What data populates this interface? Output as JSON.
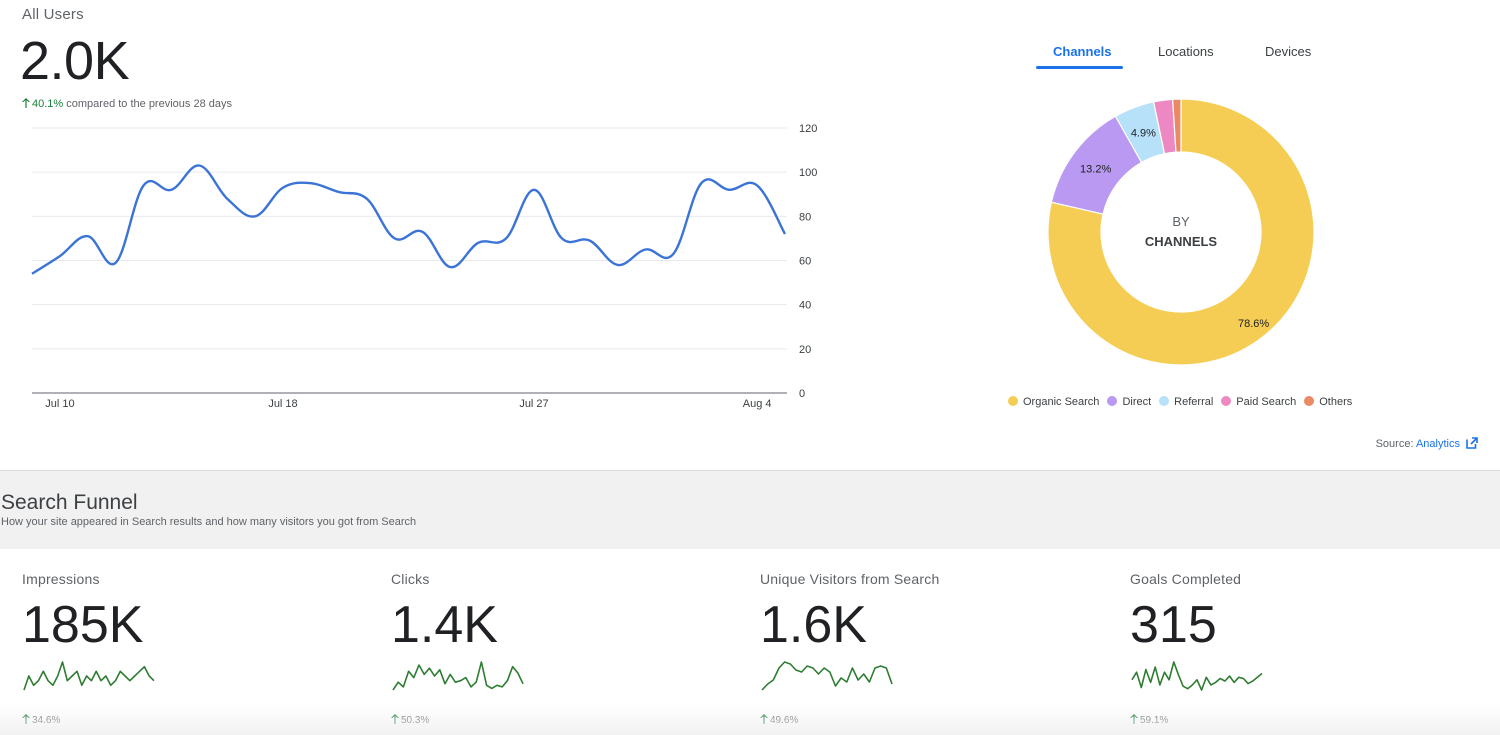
{
  "all_users": {
    "title": "All Users",
    "value": "2.0K",
    "delta": "40.1%",
    "delta_text": "compared to the previous 28 days"
  },
  "tabs": [
    {
      "label": "Channels",
      "active": true
    },
    {
      "label": "Locations",
      "active": false
    },
    {
      "label": "Devices",
      "active": false
    }
  ],
  "chart_data": [
    {
      "type": "line",
      "title": "",
      "xlabel": "",
      "ylabel": "",
      "ylim": [
        0,
        120
      ],
      "yticks": [
        0,
        20,
        40,
        60,
        80,
        100,
        120
      ],
      "xtick_labels": [
        "Jul 10",
        "Jul 18",
        "Jul 27",
        "Aug 4"
      ],
      "x": [
        "Jul 9",
        "Jul 10",
        "Jul 11",
        "Jul 12",
        "Jul 13",
        "Jul 14",
        "Jul 15",
        "Jul 16",
        "Jul 17",
        "Jul 18",
        "Jul 19",
        "Jul 20",
        "Jul 21",
        "Jul 22",
        "Jul 23",
        "Jul 24",
        "Jul 25",
        "Jul 26",
        "Jul 27",
        "Jul 28",
        "Jul 29",
        "Jul 30",
        "Jul 31",
        "Aug 1",
        "Aug 2",
        "Aug 3",
        "Aug 4",
        "Aug 5"
      ],
      "series": [
        {
          "values": [
            54,
            62,
            71,
            59,
            94,
            92,
            103,
            88,
            80,
            93,
            95,
            91,
            88,
            70,
            73,
            57,
            68,
            70,
            92,
            70,
            69,
            58,
            65,
            63,
            95,
            92,
            94,
            72
          ]
        }
      ],
      "grid": true,
      "y_axis_position": "right",
      "color": "#3b73d6"
    },
    {
      "type": "pie",
      "center_label": [
        "BY",
        "CHANNELS"
      ],
      "labels": [
        "Organic Search",
        "Direct",
        "Referral",
        "Paid Search",
        "Others"
      ],
      "values": [
        78.6,
        13.2,
        4.9,
        2.3,
        1.0
      ],
      "data_labels": [
        "78.6%",
        "13.2%",
        "4.9%",
        "",
        ""
      ],
      "colors": [
        "#f6cd54",
        "#b999f2",
        "#b7e0f9",
        "#ee88c2",
        "#ea8a64"
      ],
      "legend": "bottom"
    }
  ],
  "source": {
    "label": "Source:",
    "link": "Analytics"
  },
  "funnel": {
    "title": "Search Funnel",
    "subtitle": "How your site appeared in Search results and how many visitors you got from Search",
    "metrics": [
      {
        "title": "Impressions",
        "value": "185K",
        "delta": "34.6%",
        "spark": [
          3,
          6,
          4,
          5,
          7,
          5,
          4,
          6,
          9,
          5,
          6,
          7,
          4,
          6,
          5,
          7,
          5,
          6,
          4,
          5,
          7,
          6,
          5,
          6,
          7,
          8,
          6,
          5
        ]
      },
      {
        "title": "Clicks",
        "value": "1.4K",
        "delta": "50.3%",
        "spark": [
          4,
          9,
          6,
          16,
          12,
          20,
          14,
          18,
          13,
          17,
          8,
          14,
          9,
          10,
          12,
          6,
          9,
          22,
          7,
          5,
          7,
          6,
          10,
          19,
          15,
          8
        ]
      },
      {
        "title": "Unique Visitors from Search",
        "value": "1.6K",
        "delta": "49.6%",
        "spark": [
          5,
          8,
          10,
          16,
          19,
          18,
          15,
          14,
          17,
          16,
          13,
          16,
          14,
          7,
          11,
          9,
          16,
          10,
          13,
          9,
          16,
          17,
          16,
          8
        ]
      },
      {
        "title": "Goals Completed",
        "value": "315",
        "delta": "59.1%",
        "spark": [
          10,
          16,
          4,
          18,
          8,
          20,
          6,
          16,
          10,
          24,
          14,
          5,
          3,
          6,
          10,
          2,
          12,
          6,
          8,
          11,
          9,
          13,
          8,
          12,
          11,
          7,
          9,
          12,
          15
        ]
      }
    ]
  }
}
